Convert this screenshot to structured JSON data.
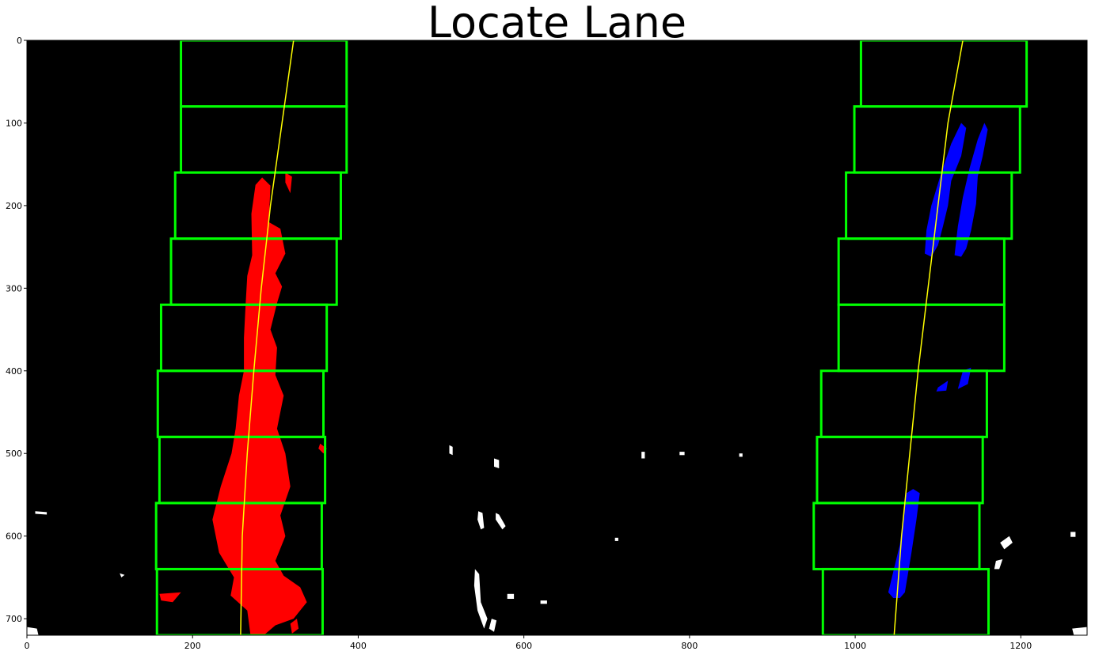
{
  "chart_data": {
    "type": "scatter",
    "title": "Locate Lane",
    "xlabel": "",
    "ylabel": "",
    "xlim": [
      0,
      1280
    ],
    "ylim": [
      720,
      0
    ],
    "x_ticks": [
      0,
      200,
      400,
      600,
      800,
      1000,
      1200
    ],
    "y_ticks": [
      0,
      100,
      200,
      300,
      400,
      500,
      600,
      700
    ],
    "background": "#000000",
    "colors": {
      "left_lane": "#ff0000",
      "right_lane": "#0000ff",
      "windows": "#00ff00",
      "fit_line": "#ffff00",
      "noise": "#ffffff"
    },
    "windows": {
      "left": [
        {
          "x0": 186,
          "x1": 386,
          "y0": 0,
          "y1": 80
        },
        {
          "x0": 186,
          "x1": 386,
          "y0": 80,
          "y1": 160
        },
        {
          "x0": 179,
          "x1": 379,
          "y0": 160,
          "y1": 240
        },
        {
          "x0": 174,
          "x1": 374,
          "y0": 240,
          "y1": 320
        },
        {
          "x0": 162,
          "x1": 362,
          "y0": 320,
          "y1": 400
        },
        {
          "x0": 158,
          "x1": 358,
          "y0": 400,
          "y1": 480
        },
        {
          "x0": 160,
          "x1": 360,
          "y0": 480,
          "y1": 560
        },
        {
          "x0": 156,
          "x1": 356,
          "y0": 560,
          "y1": 640
        },
        {
          "x0": 157,
          "x1": 357,
          "y0": 640,
          "y1": 720
        }
      ],
      "right": [
        {
          "x0": 1007,
          "x1": 1207,
          "y0": 0,
          "y1": 80
        },
        {
          "x0": 999,
          "x1": 1199,
          "y0": 80,
          "y1": 160
        },
        {
          "x0": 989,
          "x1": 1189,
          "y0": 160,
          "y1": 240
        },
        {
          "x0": 980,
          "x1": 1180,
          "y0": 240,
          "y1": 320
        },
        {
          "x0": 980,
          "x1": 1180,
          "y0": 320,
          "y1": 400
        },
        {
          "x0": 959,
          "x1": 1159,
          "y0": 400,
          "y1": 480
        },
        {
          "x0": 954,
          "x1": 1154,
          "y0": 480,
          "y1": 560
        },
        {
          "x0": 950,
          "x1": 1150,
          "y0": 560,
          "y1": 640
        },
        {
          "x0": 961,
          "x1": 1161,
          "y0": 640,
          "y1": 720
        }
      ]
    },
    "series": [
      {
        "type": "polynomial_fit",
        "color": "#ffff00",
        "points": [
          [
            322,
            0
          ],
          [
            308,
            100
          ],
          [
            294,
            200
          ],
          [
            283,
            300
          ],
          [
            274,
            400
          ],
          [
            266,
            500
          ],
          [
            260,
            600
          ],
          [
            258,
            720
          ]
        ]
      },
      {
        "type": "polynomial_fit",
        "color": "#ffff00",
        "points": [
          [
            1130,
            0
          ],
          [
            1112,
            100
          ],
          [
            1100,
            200
          ],
          [
            1088,
            300
          ],
          [
            1076,
            400
          ],
          [
            1066,
            500
          ],
          [
            1056,
            600
          ],
          [
            1047,
            720
          ]
        ]
      }
    ],
    "pixel_regions": {
      "left_lane": [
        [
          [
            270,
            720
          ],
          [
            266,
            690
          ],
          [
            246,
            672
          ],
          [
            250,
            650
          ],
          [
            232,
            620
          ],
          [
            224,
            580
          ],
          [
            234,
            540
          ],
          [
            247,
            500
          ],
          [
            252,
            470
          ],
          [
            256,
            430
          ],
          [
            262,
            400
          ],
          [
            262,
            360
          ],
          [
            264,
            320
          ],
          [
            266,
            285
          ],
          [
            272,
            260
          ],
          [
            271,
            210
          ],
          [
            276,
            175
          ],
          [
            284,
            166
          ],
          [
            294,
            176
          ],
          [
            292,
            220
          ],
          [
            306,
            228
          ],
          [
            312,
            258
          ],
          [
            300,
            282
          ],
          [
            308,
            298
          ],
          [
            302,
            318
          ],
          [
            294,
            350
          ],
          [
            302,
            372
          ],
          [
            300,
            405
          ],
          [
            310,
            430
          ],
          [
            302,
            470
          ],
          [
            312,
            500
          ],
          [
            318,
            540
          ],
          [
            306,
            575
          ],
          [
            312,
            600
          ],
          [
            300,
            630
          ],
          [
            310,
            648
          ],
          [
            330,
            662
          ],
          [
            338,
            680
          ],
          [
            322,
            700
          ],
          [
            300,
            708
          ],
          [
            286,
            720
          ]
        ],
        [
          [
            312,
            160
          ],
          [
            320,
            165
          ],
          [
            318,
            185
          ],
          [
            312,
            172
          ]
        ],
        [
          [
            160,
            670
          ],
          [
            186,
            668
          ],
          [
            176,
            680
          ],
          [
            162,
            678
          ]
        ],
        [
          [
            326,
            700
          ],
          [
            328,
            712
          ],
          [
            320,
            718
          ],
          [
            318,
            706
          ]
        ],
        [
          [
            354,
            488
          ],
          [
            362,
            494
          ],
          [
            358,
            500
          ],
          [
            352,
            494
          ]
        ]
      ],
      "right_lane": [
        [
          [
            1046,
            675
          ],
          [
            1040,
            668
          ],
          [
            1054,
            610
          ],
          [
            1058,
            578
          ],
          [
            1062,
            548
          ],
          [
            1070,
            543
          ],
          [
            1078,
            548
          ],
          [
            1074,
            580
          ],
          [
            1068,
            620
          ],
          [
            1060,
            668
          ],
          [
            1054,
            675
          ]
        ],
        [
          [
            1128,
            100
          ],
          [
            1134,
            106
          ],
          [
            1128,
            140
          ],
          [
            1116,
            170
          ],
          [
            1112,
            200
          ],
          [
            1106,
            225
          ],
          [
            1100,
            248
          ],
          [
            1092,
            262
          ],
          [
            1084,
            258
          ],
          [
            1086,
            230
          ],
          [
            1092,
            200
          ],
          [
            1104,
            160
          ],
          [
            1116,
            125
          ]
        ],
        [
          [
            1156,
            100
          ],
          [
            1160,
            108
          ],
          [
            1154,
            140
          ],
          [
            1148,
            165
          ],
          [
            1146,
            198
          ],
          [
            1140,
            230
          ],
          [
            1134,
            252
          ],
          [
            1128,
            262
          ],
          [
            1120,
            260
          ],
          [
            1124,
            225
          ],
          [
            1130,
            190
          ],
          [
            1138,
            155
          ],
          [
            1148,
            120
          ]
        ],
        [
          [
            1100,
            420
          ],
          [
            1112,
            412
          ],
          [
            1110,
            424
          ],
          [
            1098,
            425
          ]
        ],
        [
          [
            1130,
            400
          ],
          [
            1140,
            396
          ],
          [
            1136,
            416
          ],
          [
            1124,
            422
          ]
        ]
      ],
      "noise": [
        [
          [
            510,
            490
          ],
          [
            514,
            492
          ],
          [
            514,
            502
          ],
          [
            510,
            500
          ]
        ],
        [
          [
            545,
            570
          ],
          [
            550,
            572
          ],
          [
            552,
            590
          ],
          [
            548,
            592
          ],
          [
            544,
            580
          ]
        ],
        [
          [
            566,
            572
          ],
          [
            570,
            574
          ],
          [
            578,
            588
          ],
          [
            574,
            592
          ],
          [
            566,
            580
          ]
        ],
        [
          [
            541,
            640
          ],
          [
            546,
            646
          ],
          [
            548,
            680
          ],
          [
            556,
            700
          ],
          [
            552,
            712
          ],
          [
            544,
            690
          ],
          [
            540,
            660
          ]
        ],
        [
          [
            561,
            700
          ],
          [
            567,
            702
          ],
          [
            564,
            716
          ],
          [
            558,
            712
          ]
        ],
        [
          [
            580,
            670
          ],
          [
            588,
            670
          ],
          [
            588,
            676
          ],
          [
            580,
            676
          ]
        ],
        [
          [
            564,
            506
          ],
          [
            570,
            508
          ],
          [
            570,
            518
          ],
          [
            564,
            516
          ]
        ],
        [
          [
            742,
            498
          ],
          [
            746,
            498
          ],
          [
            746,
            506
          ],
          [
            742,
            506
          ]
        ],
        [
          [
            788,
            498
          ],
          [
            794,
            498
          ],
          [
            794,
            502
          ],
          [
            788,
            502
          ]
        ],
        [
          [
            860,
            500
          ],
          [
            864,
            500
          ],
          [
            864,
            504
          ],
          [
            860,
            504
          ]
        ],
        [
          [
            620,
            678
          ],
          [
            628,
            678
          ],
          [
            628,
            682
          ],
          [
            620,
            682
          ]
        ],
        [
          [
            1175,
            608
          ],
          [
            1186,
            600
          ],
          [
            1190,
            608
          ],
          [
            1180,
            616
          ]
        ],
        [
          [
            1170,
            630
          ],
          [
            1178,
            628
          ],
          [
            1174,
            640
          ],
          [
            1168,
            640
          ]
        ],
        [
          [
            1260,
            595
          ],
          [
            1266,
            595
          ],
          [
            1266,
            601
          ],
          [
            1260,
            601
          ]
        ],
        [
          [
            0,
            710
          ],
          [
            12,
            712
          ],
          [
            14,
            720
          ],
          [
            0,
            720
          ]
        ],
        [
          [
            1262,
            712
          ],
          [
            1280,
            710
          ],
          [
            1280,
            720
          ],
          [
            1264,
            720
          ]
        ],
        [
          [
            10,
            570
          ],
          [
            24,
            571
          ],
          [
            24,
            574
          ],
          [
            10,
            573
          ]
        ],
        [
          [
            112,
            645
          ],
          [
            118,
            647
          ],
          [
            114,
            650
          ]
        ],
        [
          [
            710,
            602
          ],
          [
            714,
            602
          ],
          [
            714,
            606
          ],
          [
            710,
            606
          ]
        ]
      ]
    }
  }
}
